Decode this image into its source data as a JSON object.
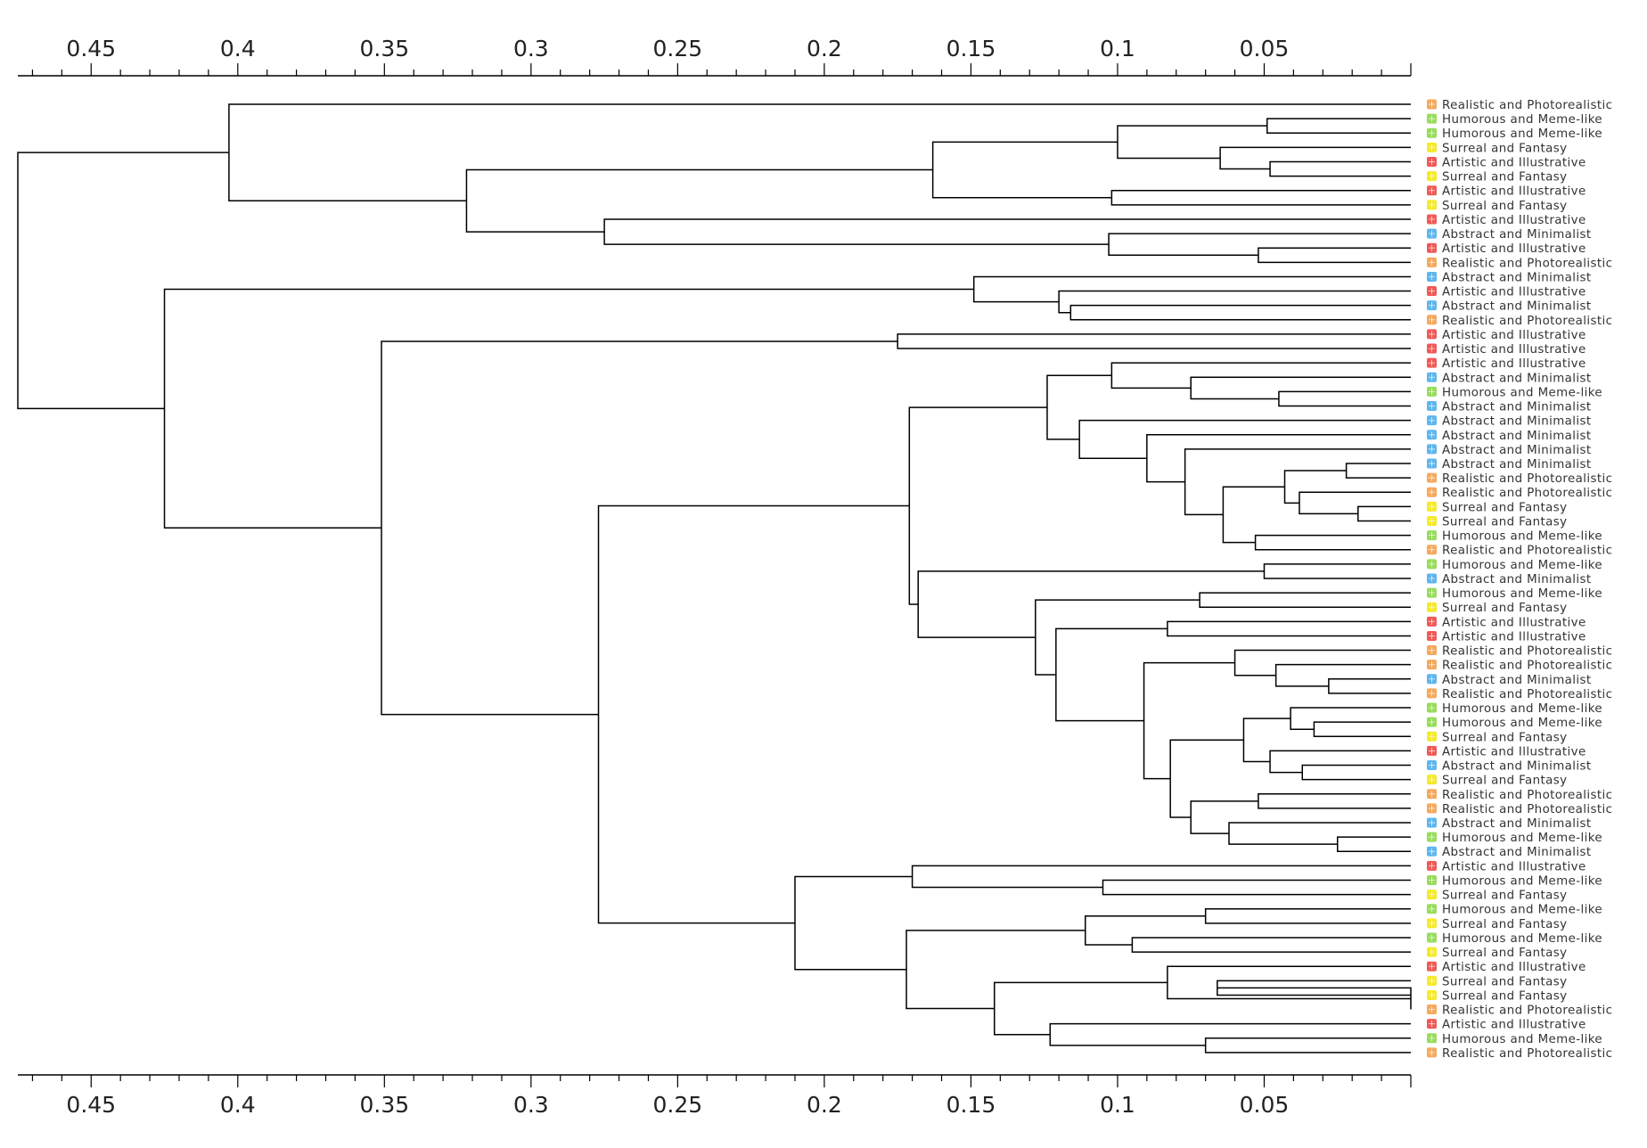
{
  "chart_data": {
    "type": "dendrogram",
    "orientation": "right",
    "x_axis": {
      "range": [
        0.475,
        0
      ],
      "ticks": [
        0.45,
        0.4,
        0.35,
        0.3,
        0.25,
        0.2,
        0.15,
        0.1,
        0.05
      ],
      "minor_step": 0.01,
      "positions": [
        "top",
        "bottom"
      ]
    },
    "categories": [
      {
        "name": "Realistic and Photorealistic",
        "color": "#f5a95e"
      },
      {
        "name": "Humorous and Meme-like",
        "color": "#98dc5c"
      },
      {
        "name": "Surreal and Fantasy",
        "color": "#f4ea2c"
      },
      {
        "name": "Artistic and Illustrative",
        "color": "#ef5a57"
      },
      {
        "name": "Abstract and Minimalist",
        "color": "#5eb6ee"
      }
    ],
    "leaves": [
      "Realistic and Photorealistic",
      "Humorous and Meme-like",
      "Humorous and Meme-like",
      "Surreal and Fantasy",
      "Artistic and Illustrative",
      "Surreal and Fantasy",
      "Artistic and Illustrative",
      "Surreal and Fantasy",
      "Artistic and Illustrative",
      "Abstract and Minimalist",
      "Artistic and Illustrative",
      "Realistic and Photorealistic",
      "Abstract and Minimalist",
      "Artistic and Illustrative",
      "Abstract and Minimalist",
      "Realistic and Photorealistic",
      "Artistic and Illustrative",
      "Artistic and Illustrative",
      "Artistic and Illustrative",
      "Abstract and Minimalist",
      "Humorous and Meme-like",
      "Abstract and Minimalist",
      "Abstract and Minimalist",
      "Abstract and Minimalist",
      "Abstract and Minimalist",
      "Abstract and Minimalist",
      "Realistic and Photorealistic",
      "Realistic and Photorealistic",
      "Surreal and Fantasy",
      "Surreal and Fantasy",
      "Humorous and Meme-like",
      "Realistic and Photorealistic",
      "Humorous and Meme-like",
      "Abstract and Minimalist",
      "Humorous and Meme-like",
      "Surreal and Fantasy",
      "Artistic and Illustrative",
      "Artistic and Illustrative",
      "Realistic and Photorealistic",
      "Realistic and Photorealistic",
      "Abstract and Minimalist",
      "Realistic and Photorealistic",
      "Humorous and Meme-like",
      "Humorous and Meme-like",
      "Surreal and Fantasy",
      "Artistic and Illustrative",
      "Abstract and Minimalist",
      "Surreal and Fantasy",
      "Realistic and Photorealistic",
      "Realistic and Photorealistic",
      "Abstract and Minimalist",
      "Humorous and Meme-like",
      "Abstract and Minimalist",
      "Artistic and Illustrative",
      "Humorous and Meme-like",
      "Surreal and Fantasy",
      "Humorous and Meme-like",
      "Surreal and Fantasy",
      "Humorous and Meme-like",
      "Surreal and Fantasy",
      "Artistic and Illustrative",
      "Surreal and Fantasy",
      "Surreal and Fantasy",
      "Realistic and Photorealistic",
      "Artistic and Illustrative",
      "Humorous and Meme-like",
      "Realistic and Photorealistic"
    ],
    "merges": [
      [
        1,
        2,
        0.049
      ],
      [
        4,
        5,
        0.048
      ],
      [
        3,
        68,
        0.065
      ],
      [
        67,
        69,
        0.1
      ],
      [
        6,
        7,
        0.102
      ],
      [
        70,
        71,
        0.163
      ],
      [
        10,
        11,
        0.052
      ],
      [
        9,
        73,
        0.103
      ],
      [
        8,
        74,
        0.275
      ],
      [
        72,
        75,
        0.322
      ],
      [
        0,
        76,
        0.403
      ],
      [
        14,
        15,
        0.116
      ],
      [
        13,
        78,
        0.12
      ],
      [
        12,
        79,
        0.149
      ],
      [
        16,
        17,
        0.175
      ],
      [
        20,
        21,
        0.045
      ],
      [
        19,
        82,
        0.075
      ],
      [
        18,
        83,
        0.102
      ],
      [
        28,
        29,
        0.018
      ],
      [
        27,
        85,
        0.038
      ],
      [
        25,
        26,
        0.022
      ],
      [
        86,
        87,
        0.043
      ],
      [
        30,
        31,
        0.053
      ],
      [
        88,
        89,
        0.064
      ],
      [
        24,
        90,
        0.077
      ],
      [
        23,
        91,
        0.09
      ],
      [
        22,
        92,
        0.113
      ],
      [
        84,
        93,
        0.124
      ],
      [
        32,
        33,
        0.05
      ],
      [
        34,
        35,
        0.072
      ],
      [
        36,
        37,
        0.083
      ],
      [
        40,
        41,
        0.028
      ],
      [
        39,
        98,
        0.046
      ],
      [
        38,
        99,
        0.06
      ],
      [
        43,
        44,
        0.033
      ],
      [
        42,
        101,
        0.041
      ],
      [
        46,
        47,
        0.037
      ],
      [
        45,
        103,
        0.048
      ],
      [
        102,
        104,
        0.057
      ],
      [
        51,
        52,
        0.025
      ],
      [
        50,
        106,
        0.062
      ],
      [
        48,
        49,
        0.052
      ],
      [
        108,
        107,
        0.075
      ],
      [
        105,
        109,
        0.082
      ],
      [
        100,
        110,
        0.091
      ],
      [
        97,
        111,
        0.121
      ],
      [
        96,
        112,
        0.128
      ],
      [
        95,
        113,
        0.168
      ],
      [
        94,
        114,
        0.171
      ],
      [
        54,
        55,
        0.105
      ],
      [
        53,
        116,
        0.17
      ],
      [
        56,
        57,
        0.07
      ],
      [
        58,
        59,
        0.095
      ],
      [
        118,
        119,
        0.111
      ],
      [
        61,
        62,
        0.066
      ],
      [
        63,
        121,
        0.0
      ],
      [
        60,
        122,
        0.083
      ],
      [
        65,
        66,
        0.07
      ],
      [
        64,
        124,
        0.123
      ],
      [
        123,
        125,
        0.142
      ],
      [
        120,
        126,
        0.172
      ],
      [
        117,
        127,
        0.21
      ],
      [
        115,
        128,
        0.277
      ],
      [
        81,
        129,
        0.351
      ],
      [
        80,
        130,
        0.425
      ],
      [
        77,
        131,
        0.475
      ]
    ]
  }
}
